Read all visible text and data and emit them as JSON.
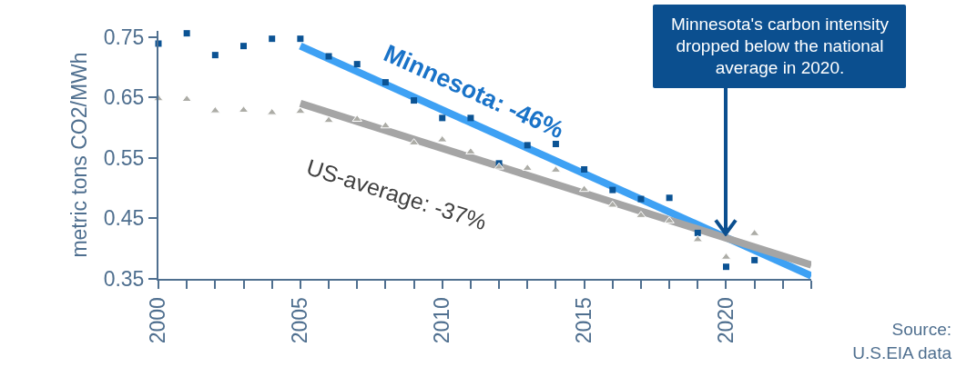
{
  "chart_data": {
    "type": "scatter",
    "ylabel": "metric tons CO2/MWh",
    "xlim": [
      2000,
      2023
    ],
    "ylim": [
      0.35,
      0.76
    ],
    "xticks": [
      2000,
      {
        "value": 2001,
        "label": null
      },
      {
        "value": 2002,
        "label": null
      },
      {
        "value": 2003,
        "label": null
      },
      {
        "value": 2004,
        "label": null
      },
      2005,
      {
        "value": 2006,
        "label": null
      },
      {
        "value": 2007,
        "label": null
      },
      {
        "value": 2008,
        "label": null
      },
      {
        "value": 2009,
        "label": null
      },
      2010,
      {
        "value": 2011,
        "label": null
      },
      {
        "value": 2012,
        "label": null
      },
      {
        "value": 2013,
        "label": null
      },
      {
        "value": 2014,
        "label": null
      },
      2015,
      {
        "value": 2016,
        "label": null
      },
      {
        "value": 2017,
        "label": null
      },
      {
        "value": 2018,
        "label": null
      },
      {
        "value": 2019,
        "label": null
      },
      2020,
      {
        "value": 2021,
        "label": null
      },
      {
        "value": 2022,
        "label": null
      },
      {
        "value": 2023,
        "label": null
      }
    ],
    "yticks": [
      0.35,
      0.45,
      0.55,
      0.65,
      0.75
    ],
    "grid": false,
    "legend": false,
    "x": [
      2000,
      2001,
      2002,
      2003,
      2004,
      2005,
      2006,
      2007,
      2008,
      2009,
      2010,
      2011,
      2012,
      2013,
      2014,
      2015,
      2016,
      2017,
      2018,
      2019,
      2020,
      2021,
      2022,
      2023
    ],
    "series": [
      {
        "type": "line",
        "name": "Minnesota: -46%",
        "color": "#3ea1f4",
        "values": [
          null,
          null,
          null,
          null,
          null,
          0.735,
          null,
          null,
          null,
          null,
          null,
          null,
          null,
          null,
          null,
          null,
          null,
          null,
          null,
          null,
          null,
          null,
          null,
          0.355
        ]
      },
      {
        "type": "line",
        "name": "US-average: -37%",
        "color": "#a5a5a5",
        "values": [
          null,
          null,
          null,
          null,
          null,
          0.64,
          null,
          null,
          null,
          null,
          null,
          null,
          null,
          null,
          null,
          null,
          null,
          null,
          null,
          null,
          null,
          null,
          null,
          0.373
        ]
      },
      {
        "marker": "square",
        "color": "#0b5394",
        "values": [
          0.739,
          0.756,
          0.72,
          0.735,
          0.747,
          0.747,
          0.718,
          0.705,
          0.675,
          0.645,
          0.616,
          0.616,
          0.541,
          0.571,
          0.573,
          0.531,
          0.497,
          0.482,
          0.484,
          0.426,
          0.37,
          0.381,
          null,
          null
        ]
      },
      {
        "marker": "triangle",
        "color": "#acaca6",
        "values": [
          0.648,
          0.647,
          0.628,
          0.629,
          0.625,
          0.627,
          0.612,
          0.614,
          0.603,
          0.575,
          0.58,
          0.56,
          0.535,
          0.533,
          0.53,
          0.498,
          0.472,
          0.455,
          0.446,
          0.415,
          0.386,
          0.425,
          null,
          null
        ]
      }
    ],
    "annotations": [
      {
        "text": "Minnesota's carbon intensity dropped below the national average in 2020.",
        "x": 2020,
        "y": 0.42
      },
      "Source: U.S.EIA data"
    ]
  }
}
